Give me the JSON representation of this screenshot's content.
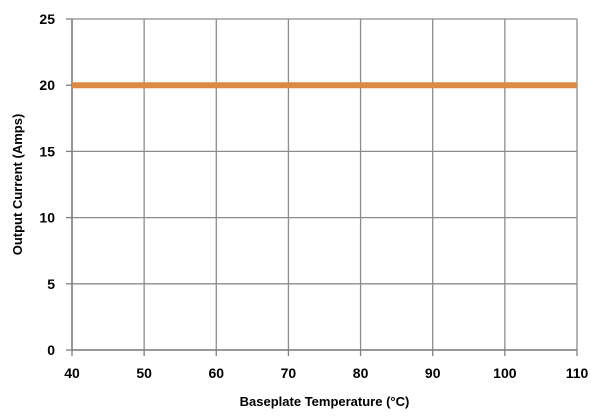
{
  "chart_data": {
    "type": "line",
    "title": "",
    "xlabel": "Baseplate Temperature (°C)",
    "ylabel": "Output Current (Amps)",
    "xlim": [
      40,
      110
    ],
    "ylim": [
      0,
      25
    ],
    "x_ticks": [
      "40",
      "50",
      "60",
      "70",
      "80",
      "90",
      "100",
      "110"
    ],
    "y_ticks": [
      "0",
      "5",
      "10",
      "15",
      "20",
      "25"
    ],
    "grid": true,
    "legend": "none",
    "series": [
      {
        "color": "#D98A44",
        "points": [
          {
            "x": 40,
            "y": 20
          },
          {
            "x": 110,
            "y": 20
          }
        ]
      }
    ],
    "colors": {
      "grid": "#8C8C8C",
      "axis": "#7F7F7F",
      "series": "#D98A44"
    }
  }
}
